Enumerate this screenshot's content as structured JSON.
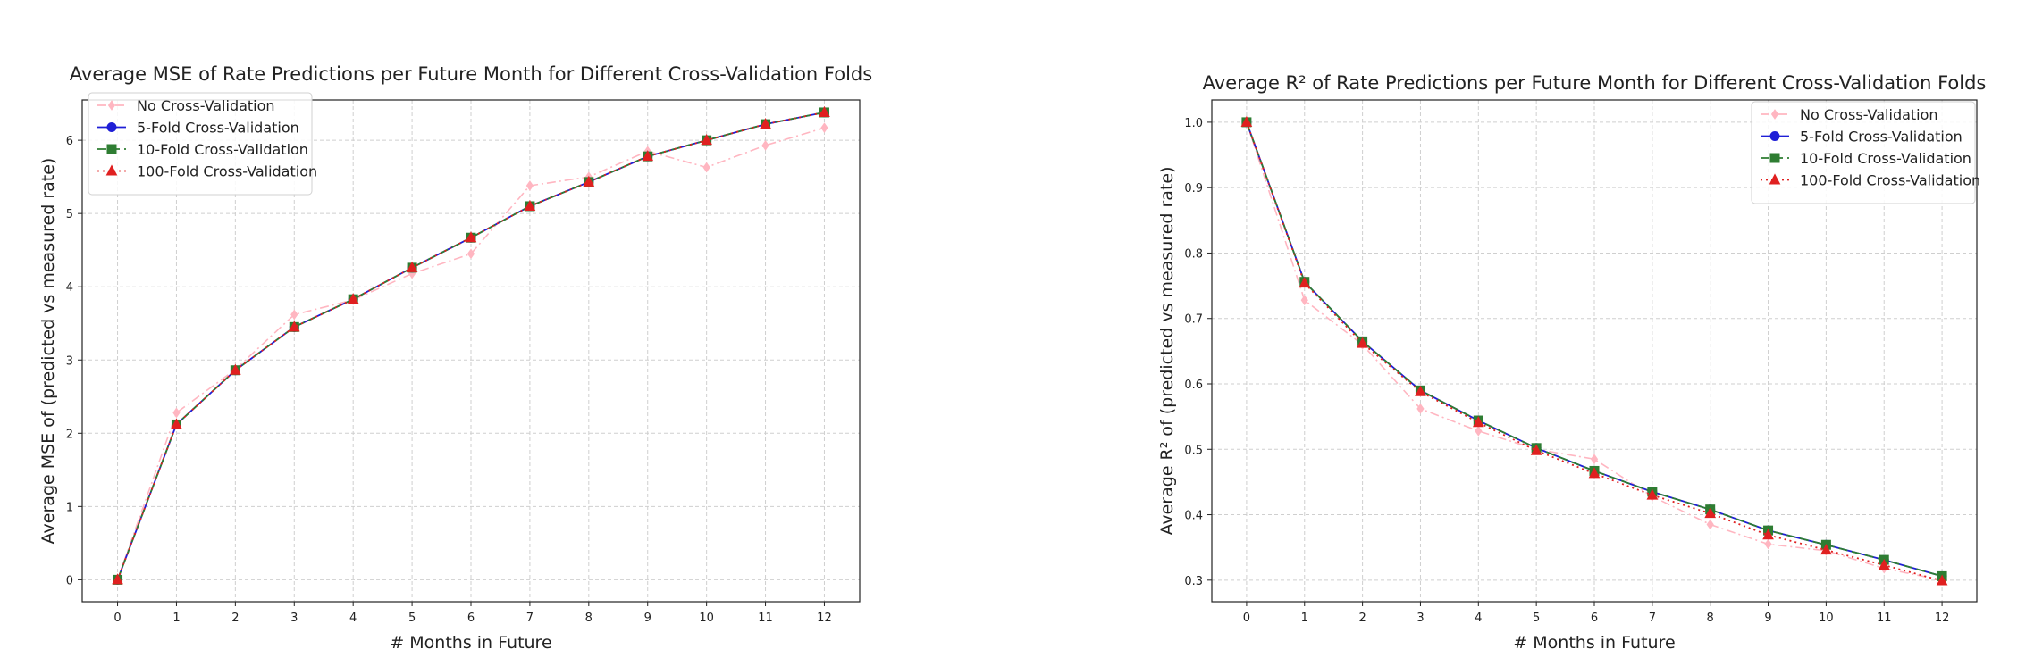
{
  "colors": {
    "no_cv": "#ffb6c1",
    "fold5": "#1f1fd6",
    "fold10": "#2e7d32",
    "fold100": "#e02020"
  },
  "chart_data": [
    {
      "type": "line",
      "title": "Average MSE of Rate Predictions per Future Month for Different Cross-Validation Folds",
      "xlabel": "# Months in Future",
      "ylabel": "Average MSE of (predicted vs measured rate)",
      "x": [
        0,
        1,
        2,
        3,
        4,
        5,
        6,
        7,
        8,
        9,
        10,
        11,
        12
      ],
      "xticks": [
        0,
        1,
        2,
        3,
        4,
        5,
        6,
        7,
        8,
        9,
        10,
        11,
        12
      ],
      "yticks": [
        0,
        1,
        2,
        3,
        4,
        5,
        6
      ],
      "ylim": [
        -0.3,
        6.55
      ],
      "xlim": [
        -0.6,
        12.6
      ],
      "grid": true,
      "legend_position": "upper-left",
      "series": [
        {
          "name": "No Cross-Validation",
          "style": "dashdot",
          "marker": "diamond",
          "color": "#ffb6c1",
          "values": [
            0.0,
            2.28,
            2.87,
            3.62,
            3.82,
            4.18,
            4.45,
            5.38,
            5.5,
            5.85,
            5.63,
            5.93,
            6.17
          ]
        },
        {
          "name": "5-Fold Cross-Validation",
          "style": "solid",
          "marker": "circle",
          "color": "#1f1fd6",
          "values": [
            0.0,
            2.12,
            2.86,
            3.45,
            3.83,
            4.26,
            4.67,
            5.1,
            5.43,
            5.78,
            6.0,
            6.22,
            6.38
          ]
        },
        {
          "name": "10-Fold Cross-Validation",
          "style": "dashed",
          "marker": "square",
          "color": "#2e7d32",
          "values": [
            0.0,
            2.12,
            2.86,
            3.45,
            3.83,
            4.26,
            4.67,
            5.1,
            5.43,
            5.78,
            6.0,
            6.22,
            6.38
          ]
        },
        {
          "name": "100-Fold Cross-Validation",
          "style": "dotted",
          "marker": "triangle",
          "color": "#e02020",
          "values": [
            0.0,
            2.12,
            2.86,
            3.45,
            3.83,
            4.26,
            4.67,
            5.1,
            5.43,
            5.78,
            6.0,
            6.22,
            6.38
          ]
        }
      ]
    },
    {
      "type": "line",
      "title": "Average R² of Rate Predictions per Future Month for Different Cross-Validation Folds",
      "xlabel": "# Months in Future",
      "ylabel": "Average R² of (predicted vs measured rate)",
      "x": [
        0,
        1,
        2,
        3,
        4,
        5,
        6,
        7,
        8,
        9,
        10,
        11,
        12
      ],
      "xticks": [
        0,
        1,
        2,
        3,
        4,
        5,
        6,
        7,
        8,
        9,
        10,
        11,
        12
      ],
      "yticks": [
        0.3,
        0.4,
        0.5,
        0.6,
        0.7,
        0.8,
        0.9,
        1.0
      ],
      "ytick_labels": [
        "0.3",
        "0.4",
        "0.5",
        "0.6",
        "0.7",
        "0.8",
        "0.9",
        "1.0"
      ],
      "ylim": [
        0.267,
        1.034
      ],
      "xlim": [
        -0.6,
        12.6
      ],
      "grid": true,
      "legend_position": "upper-right",
      "series": [
        {
          "name": "No Cross-Validation",
          "style": "dashdot",
          "marker": "diamond",
          "color": "#ffb6c1",
          "values": [
            1.0,
            0.728,
            0.66,
            0.562,
            0.528,
            0.5,
            0.485,
            0.428,
            0.385,
            0.355,
            0.345,
            0.318,
            0.3
          ]
        },
        {
          "name": "5-Fold Cross-Validation",
          "style": "solid",
          "marker": "circle",
          "color": "#1f1fd6",
          "values": [
            1.0,
            0.756,
            0.665,
            0.59,
            0.544,
            0.502,
            0.467,
            0.435,
            0.408,
            0.376,
            0.354,
            0.331,
            0.306
          ]
        },
        {
          "name": "10-Fold Cross-Validation",
          "style": "dashed",
          "marker": "square",
          "color": "#2e7d32",
          "values": [
            1.0,
            0.756,
            0.665,
            0.59,
            0.544,
            0.502,
            0.467,
            0.435,
            0.408,
            0.376,
            0.354,
            0.331,
            0.306
          ]
        },
        {
          "name": "100-Fold Cross-Validation",
          "style": "dotted",
          "marker": "triangle",
          "color": "#e02020",
          "values": [
            1.0,
            0.754,
            0.662,
            0.588,
            0.541,
            0.498,
            0.463,
            0.43,
            0.402,
            0.369,
            0.346,
            0.323,
            0.299
          ]
        }
      ]
    }
  ]
}
